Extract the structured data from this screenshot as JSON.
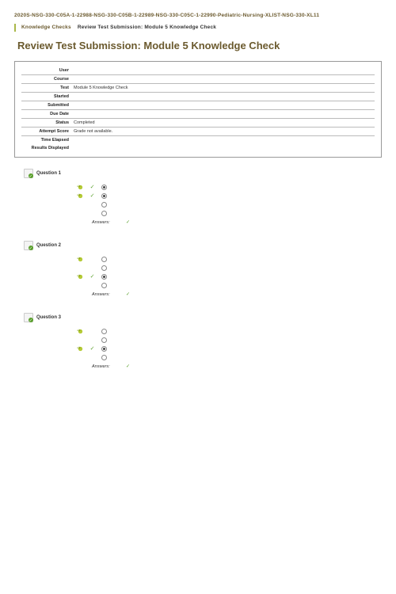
{
  "breadcrumb": {
    "path": "2020S-NSG-330-C05A-1-22988-NSG-330-C05B-1-22989-NSG-330-C05C-1-22990-Pediatric-Nursing-XLIST-NSG-330-XL11",
    "section_label": "Knowledge Checks",
    "current": "Review Test Submission: Module 5 Knowledge Check"
  },
  "page_title": "Review Test Submission: Module 5 Knowledge Check",
  "summary": {
    "rows": [
      {
        "label": "User",
        "value": ""
      },
      {
        "label": "Course",
        "value": ""
      },
      {
        "label": "Test",
        "value": "Module 5 Knowledge Check"
      },
      {
        "label": "Started",
        "value": ""
      },
      {
        "label": "Submitted",
        "value": ""
      },
      {
        "label": "Due Date",
        "value": ""
      },
      {
        "label": "Status",
        "value": "Completed"
      },
      {
        "label": "Attempt Score",
        "value": "Grade not available."
      },
      {
        "label": "Time Elapsed",
        "value": ""
      },
      {
        "label": "Results Displayed",
        "value": ""
      }
    ]
  },
  "questions": [
    {
      "title": "Question 1",
      "points": "",
      "text": "",
      "choices": [
        {
          "selected": true,
          "correct": true,
          "filled": true,
          "text": ""
        },
        {
          "selected": true,
          "correct": true,
          "filled": true,
          "text": ""
        },
        {
          "selected": false,
          "correct": false,
          "filled": false,
          "text": ""
        },
        {
          "selected": false,
          "correct": false,
          "filled": false,
          "text": ""
        }
      ],
      "answers_label": "Answers:",
      "answers_value": ""
    },
    {
      "title": "Question 2",
      "points": "",
      "text": "",
      "choices": [
        {
          "selected": true,
          "correct": false,
          "filled": false,
          "text": ""
        },
        {
          "selected": false,
          "correct": false,
          "filled": false,
          "text": ""
        },
        {
          "selected": true,
          "correct": true,
          "filled": true,
          "text": ""
        },
        {
          "selected": false,
          "correct": false,
          "filled": false,
          "text": ""
        }
      ],
      "answers_label": "Answers:",
      "answers_value": ""
    },
    {
      "title": "Question 3",
      "points": "",
      "text": "",
      "choices": [
        {
          "selected": true,
          "correct": false,
          "filled": false,
          "text": ""
        },
        {
          "selected": false,
          "correct": false,
          "filled": false,
          "text": ""
        },
        {
          "selected": true,
          "correct": true,
          "filled": true,
          "text": ""
        },
        {
          "selected": false,
          "correct": false,
          "filled": false,
          "text": ""
        }
      ],
      "answers_label": "Answers:",
      "answers_value": ""
    }
  ],
  "colors": {
    "accent_olive": "#6b5a2e",
    "accent_green": "#5aa02c",
    "lime": "#aab84a"
  }
}
